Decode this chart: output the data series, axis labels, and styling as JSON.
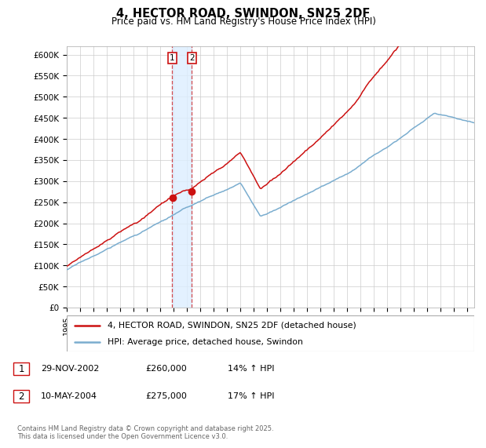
{
  "title": "4, HECTOR ROAD, SWINDON, SN25 2DF",
  "subtitle": "Price paid vs. HM Land Registry's House Price Index (HPI)",
  "legend_entry1": "4, HECTOR ROAD, SWINDON, SN25 2DF (detached house)",
  "legend_entry2": "HPI: Average price, detached house, Swindon",
  "transaction1_date": "29-NOV-2002",
  "transaction1_price": "£260,000",
  "transaction1_hpi": "14% ↑ HPI",
  "transaction1_year": 2002.9,
  "transaction1_value": 260000,
  "transaction2_date": "10-MAY-2004",
  "transaction2_price": "£275,000",
  "transaction2_hpi": "17% ↑ HPI",
  "transaction2_year": 2004.37,
  "transaction2_value": 275000,
  "footer": "Contains HM Land Registry data © Crown copyright and database right 2025.\nThis data is licensed under the Open Government Licence v3.0.",
  "hpi_color": "#7aadcf",
  "price_color": "#cc1111",
  "marker_color": "#cc1111",
  "shade_color": "#ddeeff",
  "ylim_min": 0,
  "ylim_max": 620000,
  "yticks": [
    0,
    50000,
    100000,
    150000,
    200000,
    250000,
    300000,
    350000,
    400000,
    450000,
    500000,
    550000,
    600000
  ],
  "ytick_labels": [
    "£0",
    "£50K",
    "£100K",
    "£150K",
    "£200K",
    "£250K",
    "£300K",
    "£350K",
    "£400K",
    "£450K",
    "£500K",
    "£550K",
    "£600K"
  ],
  "xstart": 1995,
  "xend": 2025.5,
  "background_color": "#ffffff",
  "grid_color": "#cccccc"
}
